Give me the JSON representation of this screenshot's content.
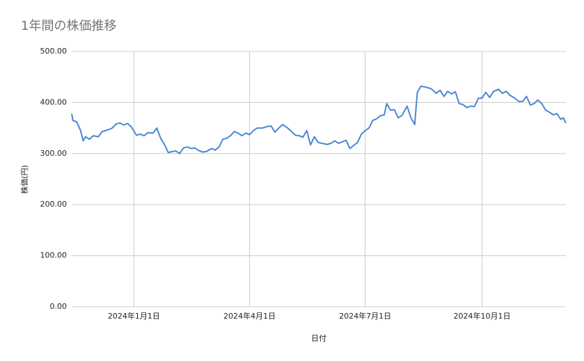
{
  "chart_data": {
    "type": "line",
    "title": "1年間の株価推移",
    "x_label": "日付",
    "y_label": "株価(円)",
    "x": [
      "2023-11-13",
      "2023-11-14",
      "2023-11-17",
      "2023-11-20",
      "2023-11-22",
      "2023-11-24",
      "2023-11-27",
      "2023-11-30",
      "2023-12-04",
      "2023-12-07",
      "2023-12-11",
      "2023-12-15",
      "2023-12-18",
      "2023-12-21",
      "2023-12-24",
      "2023-12-27",
      "2023-12-30",
      "2024-01-03",
      "2024-01-06",
      "2024-01-09",
      "2024-01-12",
      "2024-01-16",
      "2024-01-19",
      "2024-01-22",
      "2024-01-25",
      "2024-01-28",
      "2024-01-31",
      "2024-02-03",
      "2024-02-06",
      "2024-02-09",
      "2024-02-12",
      "2024-02-15",
      "2024-02-18",
      "2024-02-21",
      "2024-02-24",
      "2024-02-27",
      "2024-03-02",
      "2024-03-05",
      "2024-03-08",
      "2024-03-11",
      "2024-03-14",
      "2024-03-17",
      "2024-03-20",
      "2024-03-23",
      "2024-03-26",
      "2024-03-29",
      "2024-04-01",
      "2024-04-04",
      "2024-04-07",
      "2024-04-11",
      "2024-04-15",
      "2024-04-18",
      "2024-04-21",
      "2024-04-24",
      "2024-04-27",
      "2024-05-01",
      "2024-05-04",
      "2024-05-07",
      "2024-05-10",
      "2024-05-13",
      "2024-05-16",
      "2024-05-19",
      "2024-05-22",
      "2024-05-25",
      "2024-05-28",
      "2024-06-01",
      "2024-06-04",
      "2024-06-07",
      "2024-06-10",
      "2024-06-13",
      "2024-06-16",
      "2024-06-19",
      "2024-06-22",
      "2024-06-25",
      "2024-06-28",
      "2024-07-01",
      "2024-07-04",
      "2024-07-07",
      "2024-07-10",
      "2024-07-13",
      "2024-07-16",
      "2024-07-18",
      "2024-07-21",
      "2024-07-24",
      "2024-07-27",
      "2024-07-30",
      "2024-08-03",
      "2024-08-06",
      "2024-08-09",
      "2024-08-11",
      "2024-08-14",
      "2024-08-18",
      "2024-08-22",
      "2024-08-26",
      "2024-08-29",
      "2024-09-01",
      "2024-09-04",
      "2024-09-07",
      "2024-09-10",
      "2024-09-13",
      "2024-09-16",
      "2024-09-19",
      "2024-09-22",
      "2024-09-25",
      "2024-09-28",
      "2024-10-01",
      "2024-10-04",
      "2024-10-07",
      "2024-10-10",
      "2024-10-14",
      "2024-10-17",
      "2024-10-20",
      "2024-10-23",
      "2024-10-26",
      "2024-10-30",
      "2024-11-02",
      "2024-11-05",
      "2024-11-08",
      "2024-11-11",
      "2024-11-14",
      "2024-11-17",
      "2024-11-20",
      "2024-11-23",
      "2024-11-26",
      "2024-11-29",
      "2024-12-02",
      "2024-12-04",
      "2024-12-06"
    ],
    "series": [
      {
        "name": "株価",
        "color": "#4a86d4",
        "values": [
          378,
          365,
          362,
          345,
          325,
          333,
          328,
          335,
          333,
          343,
          346,
          350,
          358,
          360,
          356,
          359,
          352,
          336,
          338,
          335,
          341,
          340,
          350,
          330,
          318,
          302,
          304,
          305,
          300,
          311,
          313,
          310,
          311,
          306,
          303,
          304,
          310,
          307,
          313,
          328,
          330,
          335,
          343,
          340,
          335,
          340,
          337,
          345,
          350,
          350,
          353,
          354,
          342,
          350,
          357,
          350,
          343,
          336,
          335,
          332,
          345,
          317,
          333,
          322,
          320,
          318,
          320,
          325,
          320,
          323,
          326,
          310,
          316,
          322,
          338,
          345,
          350,
          365,
          368,
          374,
          376,
          398,
          385,
          386,
          370,
          375,
          393,
          370,
          357,
          420,
          432,
          430,
          427,
          418,
          424,
          412,
          422,
          417,
          421,
          398,
          396,
          390,
          393,
          392,
          408,
          409,
          420,
          410,
          422,
          426,
          418,
          422,
          414,
          410,
          402,
          402,
          412,
          395,
          398,
          405,
          398,
          385,
          381,
          376,
          378,
          367,
          370,
          360
        ]
      }
    ],
    "xlim": [
      "2023-11-13",
      "2024-12-06"
    ],
    "xticks": [
      {
        "value": "2024-01-01",
        "label": "2024年1月1日"
      },
      {
        "value": "2024-04-01",
        "label": "2024年4月1日"
      },
      {
        "value": "2024-07-01",
        "label": "2024年7月1日"
      },
      {
        "value": "2024-10-01",
        "label": "2024年10月1日"
      }
    ],
    "ylim": [
      0,
      500
    ],
    "yticks": [
      {
        "value": 0,
        "label": "0.00"
      },
      {
        "value": 100,
        "label": "100.00"
      },
      {
        "value": 200,
        "label": "200.00"
      },
      {
        "value": 300,
        "label": "300.00"
      },
      {
        "value": 400,
        "label": "400.00"
      },
      {
        "value": 500,
        "label": "500.00"
      }
    ],
    "grid": true
  }
}
